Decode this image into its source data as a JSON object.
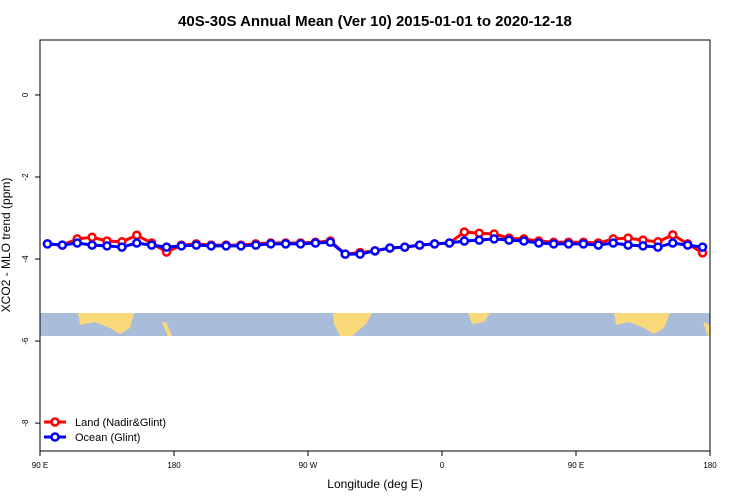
{
  "chart_data": {
    "type": "line",
    "title": "40S-30S Annual Mean (Ver 10)   2015-01-01 to 2020-12-18",
    "x_label": "Longitude (deg E)",
    "y_label": "XCO2 - MLO trend (ppm)",
    "x": [
      95,
      105,
      115,
      125,
      135,
      145,
      155,
      165,
      175,
      185,
      195,
      205,
      215,
      225,
      235,
      245,
      255,
      265,
      275,
      285,
      295,
      305,
      315,
      325,
      335,
      345,
      355,
      365,
      375,
      385,
      395,
      405,
      415,
      425,
      435,
      445,
      455,
      465,
      475,
      485,
      495,
      505,
      515,
      525,
      535
    ],
    "series": [
      {
        "name": "Land (Nadir&Glint)",
        "color": "#ff0000",
        "values": [
          -3.63,
          -3.66,
          -3.51,
          -3.47,
          -3.56,
          -3.58,
          -3.42,
          -3.61,
          -3.83,
          -3.66,
          -3.63,
          -3.66,
          -3.66,
          -3.66,
          -3.63,
          -3.61,
          -3.61,
          -3.61,
          -3.59,
          -3.56,
          -3.88,
          -3.84,
          -3.8,
          -3.73,
          -3.71,
          -3.66,
          -3.63,
          -3.61,
          -3.34,
          -3.37,
          -3.39,
          -3.49,
          -3.51,
          -3.56,
          -3.59,
          -3.59,
          -3.59,
          -3.61,
          -3.51,
          -3.49,
          -3.54,
          -3.58,
          -3.41,
          -3.63,
          -3.85
        ]
      },
      {
        "name": "Ocean (Glint)",
        "color": "#0000ff",
        "values": [
          -3.63,
          -3.66,
          -3.61,
          -3.66,
          -3.68,
          -3.71,
          -3.61,
          -3.66,
          -3.71,
          -3.68,
          -3.66,
          -3.68,
          -3.68,
          -3.68,
          -3.66,
          -3.63,
          -3.63,
          -3.63,
          -3.61,
          -3.59,
          -3.88,
          -3.88,
          -3.8,
          -3.73,
          -3.71,
          -3.66,
          -3.63,
          -3.61,
          -3.56,
          -3.54,
          -3.51,
          -3.54,
          -3.56,
          -3.61,
          -3.63,
          -3.63,
          -3.63,
          -3.66,
          -3.61,
          -3.66,
          -3.68,
          -3.71,
          -3.61,
          -3.66,
          -3.71
        ]
      }
    ],
    "xlim": [
      90,
      540
    ],
    "xticks": [
      {
        "value": 90,
        "label": "90 E"
      },
      {
        "value": 180,
        "label": "180"
      },
      {
        "value": 270,
        "label": "90 W"
      },
      {
        "value": 360,
        "label": "0"
      },
      {
        "value": 450,
        "label": "90 E"
      },
      {
        "value": 540,
        "label": "180"
      }
    ],
    "ylim": [
      -8.68,
      1.34
    ],
    "yticks": [
      0,
      -2,
      -4,
      -6,
      -8
    ],
    "legend": "lower-left"
  }
}
